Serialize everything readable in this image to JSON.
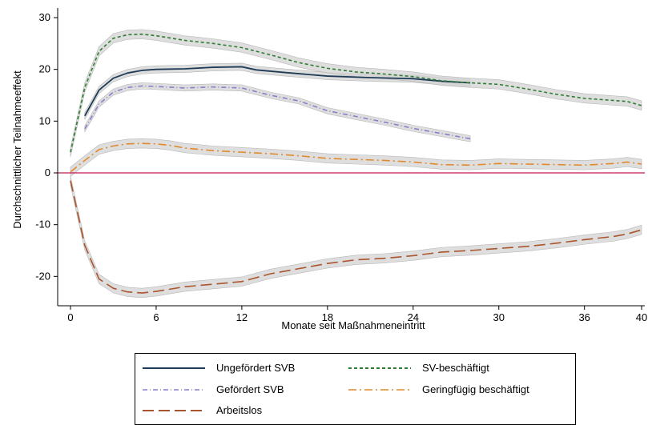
{
  "chart_data": {
    "type": "line",
    "xlabel": "Monate seit Maßnahmeneintritt",
    "ylabel": "Durchschnittlicher Teilnahmeeffekt",
    "xlim": [
      -1,
      40
    ],
    "ylim": [
      -26,
      31
    ],
    "xticks": [
      0,
      6,
      12,
      18,
      24,
      30,
      36,
      40
    ],
    "yticks": [
      -20,
      -10,
      0,
      10,
      20,
      30
    ],
    "reference_line": {
      "y": 0,
      "color": "#c2185b"
    },
    "confidence_band_color": "#d3d3d3",
    "series": [
      {
        "name": "Ungefördert SVB",
        "style": "solid",
        "color": "#1f3b57",
        "x": [
          1,
          2,
          3,
          4,
          5,
          6,
          8,
          10,
          12,
          13,
          15,
          18,
          21,
          24,
          26,
          28
        ],
        "y": [
          11,
          16,
          18.3,
          19.3,
          19.8,
          20,
          20.1,
          20.4,
          20.5,
          19.9,
          19.4,
          18.7,
          18.4,
          18.2,
          17.7,
          17.4
        ],
        "ci": 0.7
      },
      {
        "name": "SV-beschäftigt",
        "style": "dashed",
        "color": "#2e7d32",
        "x": [
          0,
          1,
          2,
          3,
          4,
          5,
          6,
          8,
          10,
          12,
          14,
          16,
          18,
          20,
          22,
          24,
          26,
          28,
          30,
          32,
          34,
          36,
          38,
          39,
          40
        ],
        "y": [
          4,
          16.5,
          23.5,
          26,
          26.7,
          26.8,
          26.5,
          25.6,
          25,
          24.2,
          22.8,
          21.3,
          20.2,
          19.5,
          19.1,
          18.6,
          17.8,
          17.4,
          17.1,
          16.2,
          15.2,
          14.4,
          14,
          13.8,
          13
        ],
        "ci": 0.9
      },
      {
        "name": "Gefördert SVB",
        "style": "dashdot",
        "color": "#8a7fc9",
        "x": [
          1,
          2,
          3,
          4,
          5,
          6,
          8,
          10,
          12,
          14,
          16,
          18,
          20,
          22,
          24,
          26,
          28
        ],
        "y": [
          8.5,
          13.3,
          15.6,
          16.5,
          16.8,
          16.7,
          16.4,
          16.6,
          16.4,
          15,
          13.9,
          12,
          10.9,
          9.8,
          8.6,
          7.6,
          6.6
        ],
        "ci": 0.6
      },
      {
        "name": "Geringfügig beschäftigt",
        "style": "dashdotlong",
        "color": "#e08a2d",
        "x": [
          0,
          1,
          2,
          3,
          4,
          5,
          6,
          7,
          8,
          10,
          12,
          14,
          16,
          18,
          20,
          22,
          24,
          26,
          28,
          30,
          32,
          34,
          36,
          38,
          39,
          40
        ],
        "y": [
          0.2,
          2.4,
          4.5,
          5.2,
          5.6,
          5.7,
          5.6,
          5.3,
          4.8,
          4.3,
          4,
          3.7,
          3.3,
          2.8,
          2.6,
          2.4,
          2.1,
          1.6,
          1.5,
          1.8,
          1.7,
          1.6,
          1.5,
          1.8,
          2.1,
          1.7
        ],
        "ci": 0.9
      },
      {
        "name": "Arbeitslos",
        "style": "longdash",
        "color": "#a9552d",
        "x": [
          0,
          1,
          2,
          3,
          4,
          5,
          6,
          8,
          10,
          12,
          14,
          16,
          18,
          20,
          22,
          24,
          26,
          28,
          30,
          32,
          34,
          36,
          38,
          39,
          40
        ],
        "y": [
          -1.5,
          -14,
          -20.5,
          -22.3,
          -23,
          -23.2,
          -22.9,
          -22,
          -21.5,
          -21,
          -19.5,
          -18.5,
          -17.5,
          -16.8,
          -16.5,
          -16,
          -15.3,
          -15,
          -14.6,
          -14.2,
          -13.6,
          -12.9,
          -12.3,
          -11.8,
          -11
        ],
        "ci": 0.9
      }
    ],
    "legend_order": [
      "Ungefördert SVB",
      "SV-beschäftigt",
      "Gefördert SVB",
      "Geringfügig beschäftigt",
      "Arbeitslos"
    ]
  }
}
